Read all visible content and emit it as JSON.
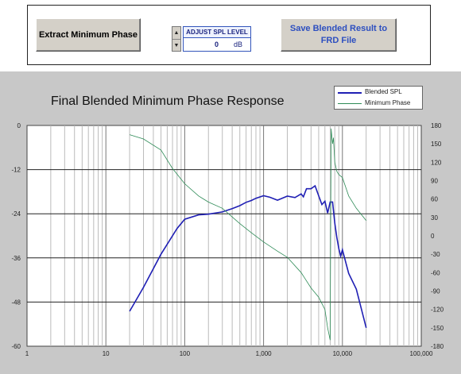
{
  "toolbar": {
    "extract_label": "Extract Minimum Phase",
    "spl": {
      "title": "ADJUST SPL LEVEL",
      "value": "0",
      "unit": "dB",
      "up": "▲",
      "down": "▼"
    },
    "save_label": "Save Blended Result to FRD File"
  },
  "chart_data": {
    "type": "line",
    "title": "Final Blended Minimum Phase Response",
    "x_scale": "log",
    "xlim": [
      1,
      100000
    ],
    "x_ticks": [
      1,
      10,
      100,
      1000,
      10000,
      100000
    ],
    "x_tick_labels": [
      "1",
      "10",
      "100",
      "1,000",
      "10,000",
      "100,000"
    ],
    "y_left": {
      "lim": [
        -60,
        0
      ],
      "ticks": [
        0,
        -12,
        -24,
        -36,
        -48,
        -60
      ],
      "tick_labels": [
        "0",
        "-12",
        "-24",
        "-36",
        "-48",
        "-60"
      ]
    },
    "y_right": {
      "lim": [
        -180,
        180
      ],
      "ticks": [
        180,
        150,
        120,
        90,
        60,
        30,
        0,
        -30,
        -60,
        -90,
        -120,
        -150,
        -180
      ],
      "tick_labels": [
        "180",
        "150",
        "120",
        "90",
        "60",
        "30",
        "0",
        "-30",
        "-60",
        "-90",
        "-120",
        "-150",
        "-180"
      ]
    },
    "grid": true,
    "legend_position": "top-right",
    "series": [
      {
        "name": "Blended SPL",
        "axis": "left",
        "color": "#1f1fb4",
        "x": [
          20,
          30,
          50,
          80,
          100,
          150,
          200,
          300,
          400,
          500,
          600,
          700,
          800,
          1000,
          1200,
          1500,
          2000,
          2500,
          3000,
          3200,
          3500,
          4000,
          4500,
          5000,
          5500,
          6000,
          6500,
          7000,
          7500,
          8000,
          8500,
          9000,
          9500,
          10000,
          12000,
          15000,
          20000
        ],
        "y": [
          -50.5,
          -44,
          -35,
          -28,
          -25.5,
          -24.3,
          -24.1,
          -23.5,
          -22.6,
          -21.8,
          -20.9,
          -20.4,
          -19.8,
          -19.1,
          -19.5,
          -20.3,
          -19.2,
          -19.6,
          -18.6,
          -19.4,
          -17.2,
          -17.2,
          -16.4,
          -19.1,
          -21.5,
          -20.6,
          -23.8,
          -20.8,
          -20.8,
          -26.5,
          -30.5,
          -33.5,
          -35.5,
          -33.8,
          -40.2,
          -44.5,
          -55
        ]
      },
      {
        "name": "Minimum Phase",
        "axis": "right",
        "color": "#2e8b57",
        "x": [
          20,
          30,
          50,
          70,
          100,
          150,
          200,
          300,
          500,
          700,
          1000,
          1500,
          2000,
          3000,
          4000,
          5000,
          6000,
          6500,
          7000,
          7200,
          7500,
          7700,
          8000,
          8500,
          9000,
          10000,
          12000,
          15000,
          20000
        ],
        "y": [
          165,
          158,
          140,
          110,
          85,
          65,
          55,
          45,
          20,
          5,
          -10,
          -25,
          -35,
          -60,
          -85,
          -100,
          -120,
          -150,
          -170,
          175,
          150,
          160,
          120,
          105,
          100,
          95,
          65,
          45,
          25
        ]
      }
    ]
  },
  "colors": {
    "plot_bg": "#ffffff",
    "chart_bg": "#c8c8c8",
    "button_bg": "#d4d0c8",
    "save_text": "#2d4fc0"
  }
}
